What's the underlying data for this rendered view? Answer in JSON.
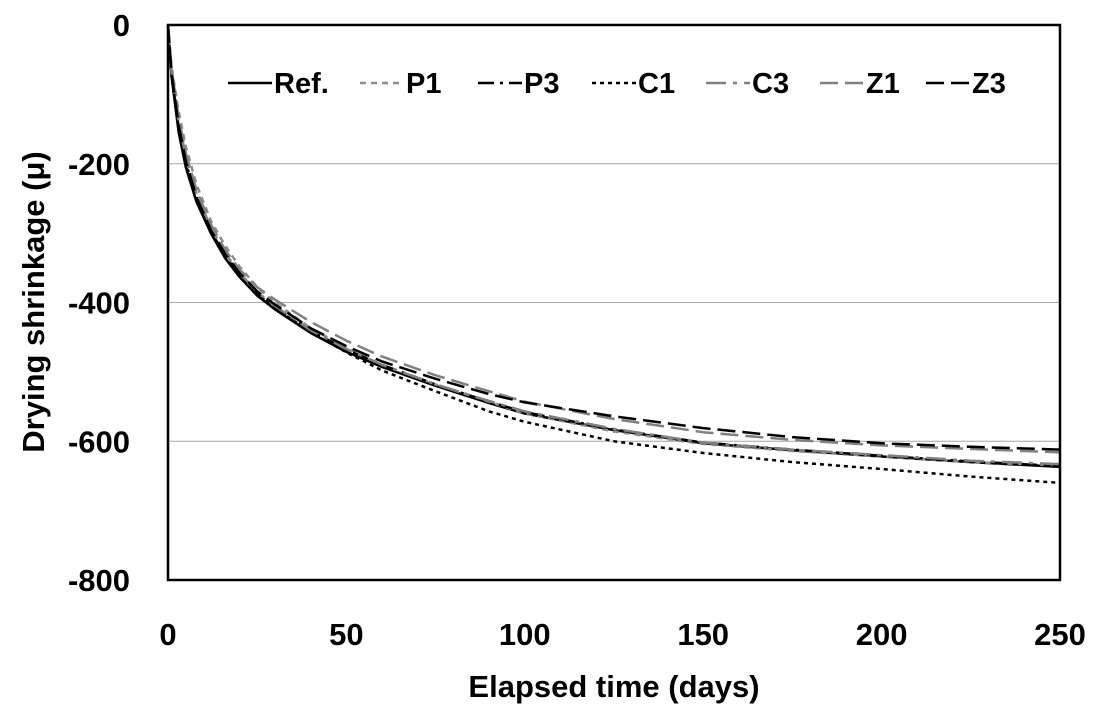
{
  "chart_data": {
    "type": "line",
    "xlabel": "Elapsed time (days)",
    "ylabel": "Drying shrinkage (μ)",
    "xlim": [
      0,
      250
    ],
    "ylim": [
      -800,
      0
    ],
    "xticks": [
      0,
      50,
      100,
      150,
      200,
      250
    ],
    "yticks": [
      0,
      -200,
      -400,
      -600,
      -800
    ],
    "grid": "horizontal",
    "legend_position": "top",
    "x": [
      0,
      1,
      3,
      5,
      8,
      12,
      16,
      20,
      25,
      30,
      40,
      50,
      60,
      75,
      90,
      100,
      125,
      150,
      175,
      200,
      225,
      250
    ],
    "series": [
      {
        "name": "Ref.",
        "color": "#000000",
        "dash": "",
        "values": [
          0,
          -75,
          -155,
          -205,
          -255,
          -300,
          -336,
          -363,
          -390,
          -410,
          -444,
          -471,
          -493,
          -520,
          -545,
          -560,
          -584,
          -603,
          -613,
          -622,
          -630,
          -637
        ]
      },
      {
        "name": "P1",
        "color": "#8c8c8c",
        "dash": "6,5",
        "values": [
          0,
          -60,
          -125,
          -175,
          -230,
          -282,
          -318,
          -348,
          -378,
          -400,
          -437,
          -465,
          -490,
          -518,
          -543,
          -560,
          -586,
          -604,
          -614,
          -622,
          -630,
          -635
        ]
      },
      {
        "name": "P3",
        "color": "#000000",
        "dash": "16,6,3,6",
        "values": [
          0,
          -72,
          -148,
          -198,
          -250,
          -297,
          -333,
          -360,
          -387,
          -407,
          -441,
          -468,
          -490,
          -518,
          -543,
          -558,
          -583,
          -602,
          -612,
          -621,
          -629,
          -636
        ]
      },
      {
        "name": "C1",
        "color": "#000000",
        "dash": "4,4",
        "values": [
          0,
          -74,
          -152,
          -202,
          -253,
          -299,
          -334,
          -361,
          -388,
          -408,
          -443,
          -472,
          -498,
          -528,
          -557,
          -572,
          -600,
          -617,
          -630,
          -640,
          -651,
          -660
        ]
      },
      {
        "name": "C3",
        "color": "#808080",
        "dash": "20,7,4,7",
        "values": [
          0,
          -68,
          -140,
          -190,
          -243,
          -292,
          -329,
          -357,
          -385,
          -405,
          -440,
          -467,
          -490,
          -518,
          -542,
          -557,
          -582,
          -602,
          -612,
          -620,
          -628,
          -633
        ]
      },
      {
        "name": "Z1",
        "color": "#808080",
        "dash": "18,7",
        "values": [
          0,
          -64,
          -134,
          -184,
          -238,
          -287,
          -324,
          -352,
          -378,
          -396,
          -428,
          -455,
          -478,
          -505,
          -528,
          -543,
          -568,
          -587,
          -598,
          -606,
          -611,
          -616
        ]
      },
      {
        "name": "Z3",
        "color": "#000000",
        "dash": "18,7",
        "values": [
          0,
          -70,
          -145,
          -196,
          -248,
          -295,
          -330,
          -357,
          -384,
          -403,
          -437,
          -463,
          -485,
          -510,
          -532,
          -544,
          -564,
          -581,
          -594,
          -603,
          -608,
          -612
        ]
      }
    ]
  }
}
